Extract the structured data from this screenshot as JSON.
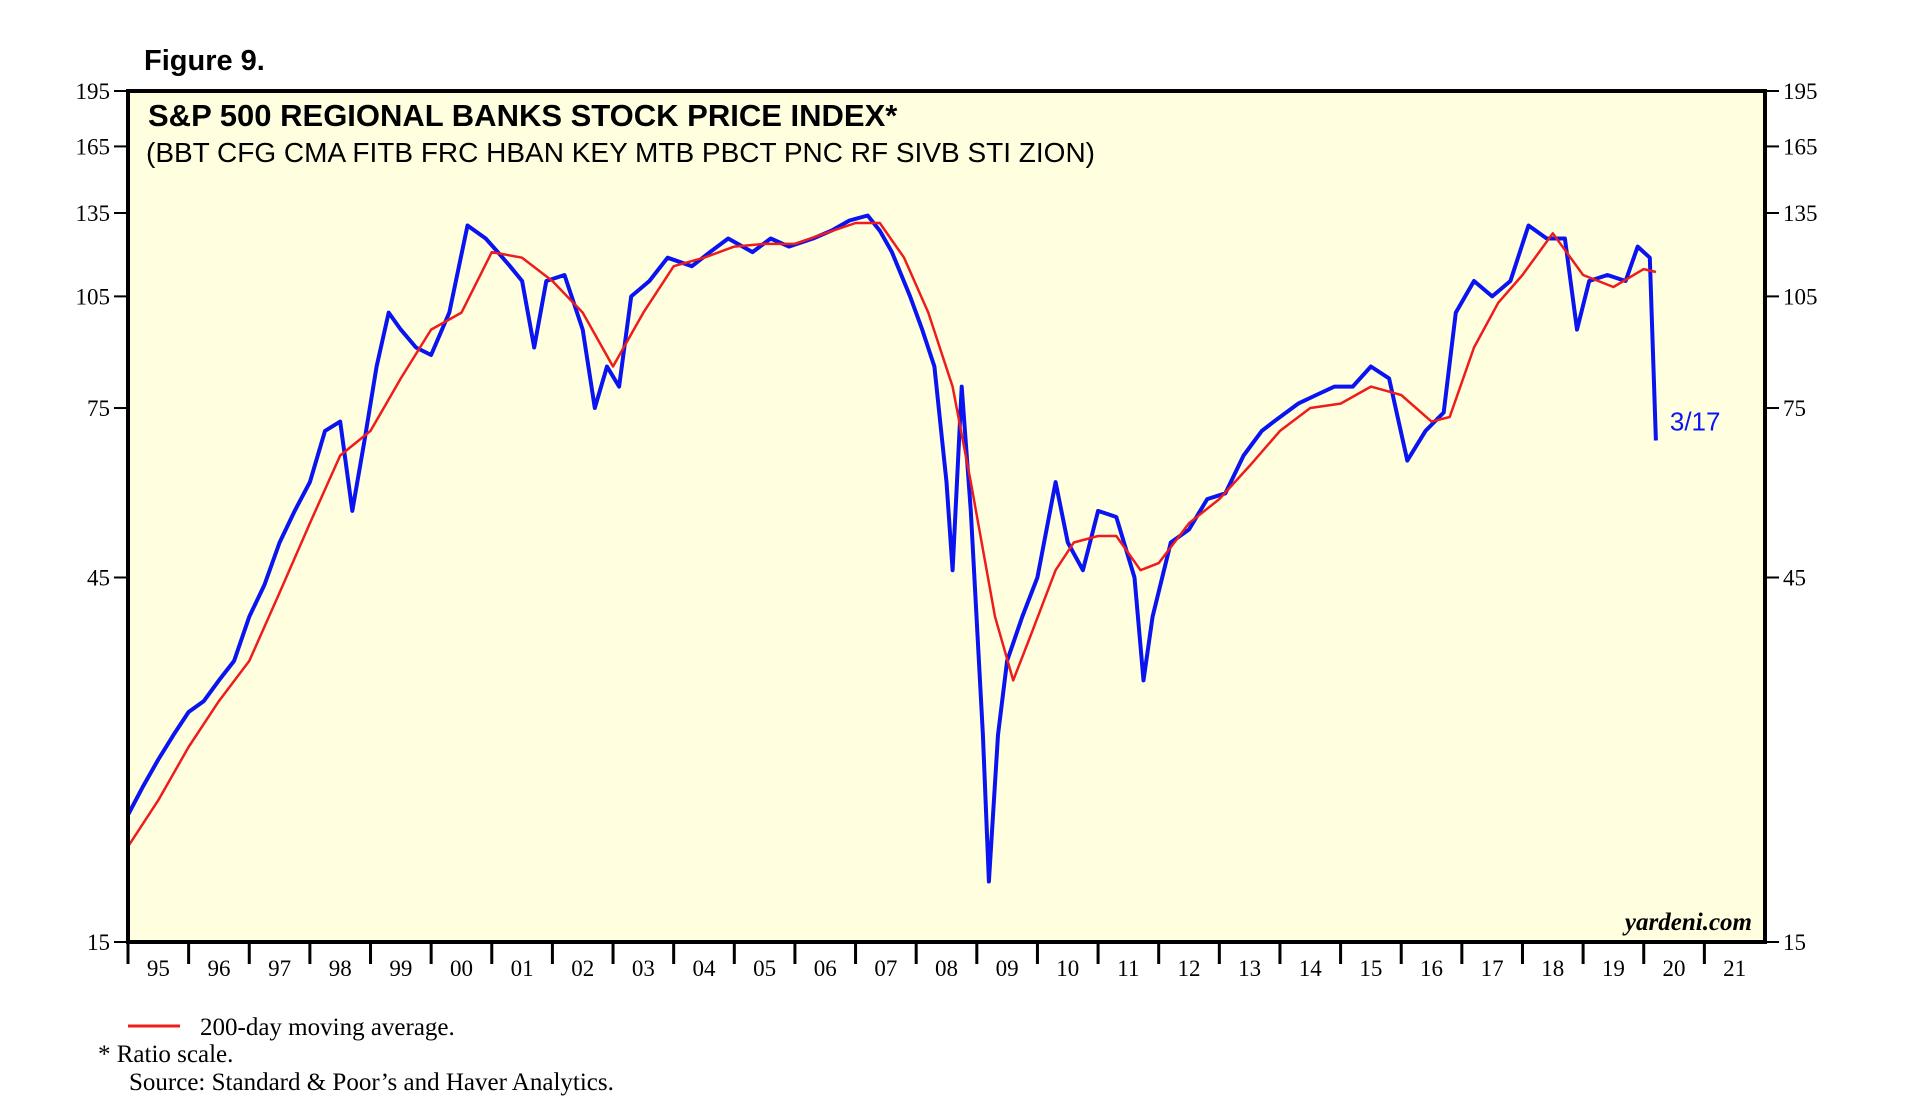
{
  "chart_data": {
    "type": "line",
    "figure_label": "Figure 9.",
    "title": "S&P 500 REGIONAL BANKS STOCK PRICE INDEX*",
    "subtitle": "(BBT CFG CMA FITB FRC HBAN KEY MTB PBCT PNC RF SIVB STI ZION)",
    "watermark": "yardeni.com",
    "annotation": "3/17",
    "footnotes": [
      "*  Ratio scale.",
      "Source: Standard & Poor’s and Haver Analytics."
    ],
    "log_scale": true,
    "xlim": [
      1995,
      2022
    ],
    "xticks": [
      {
        "value": 1995,
        "label": "95"
      },
      {
        "value": 1996,
        "label": "96"
      },
      {
        "value": 1997,
        "label": "97"
      },
      {
        "value": 1998,
        "label": "98"
      },
      {
        "value": 1999,
        "label": "99"
      },
      {
        "value": 2000,
        "label": "00"
      },
      {
        "value": 2001,
        "label": "01"
      },
      {
        "value": 2002,
        "label": "02"
      },
      {
        "value": 2003,
        "label": "03"
      },
      {
        "value": 2004,
        "label": "04"
      },
      {
        "value": 2005,
        "label": "05"
      },
      {
        "value": 2006,
        "label": "06"
      },
      {
        "value": 2007,
        "label": "07"
      },
      {
        "value": 2008,
        "label": "08"
      },
      {
        "value": 2009,
        "label": "09"
      },
      {
        "value": 2010,
        "label": "10"
      },
      {
        "value": 2011,
        "label": "11"
      },
      {
        "value": 2012,
        "label": "12"
      },
      {
        "value": 2013,
        "label": "13"
      },
      {
        "value": 2014,
        "label": "14"
      },
      {
        "value": 2015,
        "label": "15"
      },
      {
        "value": 2016,
        "label": "16"
      },
      {
        "value": 2017,
        "label": "17"
      },
      {
        "value": 2018,
        "label": "18"
      },
      {
        "value": 2019,
        "label": "19"
      },
      {
        "value": 2020,
        "label": "20"
      },
      {
        "value": 2021,
        "label": "21"
      }
    ],
    "ylim": [
      15,
      195
    ],
    "yticks": [
      15,
      45,
      75,
      105,
      135,
      165,
      195
    ],
    "series": [
      {
        "color": "#0a14f0",
        "x": [
          1995.0,
          1995.25,
          1995.5,
          1995.75,
          1996.0,
          1996.25,
          1996.5,
          1996.75,
          1997.0,
          1997.25,
          1997.5,
          1997.75,
          1998.0,
          1998.25,
          1998.5,
          1998.7,
          1998.9,
          1999.1,
          1999.3,
          1999.5,
          1999.75,
          2000.0,
          2000.3,
          2000.6,
          2000.9,
          2001.1,
          2001.3,
          2001.5,
          2001.7,
          2001.9,
          2002.2,
          2002.5,
          2002.7,
          2002.9,
          2003.1,
          2003.3,
          2003.6,
          2003.9,
          2004.3,
          2004.6,
          2004.9,
          2005.3,
          2005.6,
          2005.9,
          2006.3,
          2006.6,
          2006.9,
          2007.2,
          2007.4,
          2007.6,
          2007.9,
          2008.1,
          2008.3,
          2008.5,
          2008.6,
          2008.75,
          2008.9,
          2009.1,
          2009.2,
          2009.35,
          2009.5,
          2009.75,
          2010.0,
          2010.3,
          2010.5,
          2010.75,
          2011.0,
          2011.3,
          2011.6,
          2011.75,
          2011.9,
          2012.2,
          2012.5,
          2012.8,
          2013.1,
          2013.4,
          2013.7,
          2013.9,
          2014.3,
          2014.6,
          2014.9,
          2015.2,
          2015.5,
          2015.8,
          2016.1,
          2016.4,
          2016.7,
          2016.9,
          2017.2,
          2017.5,
          2017.8,
          2018.1,
          2018.4,
          2018.7,
          2018.9,
          2019.1,
          2019.4,
          2019.7,
          2019.9,
          2020.1,
          2020.2
        ],
        "values": [
          22,
          24,
          26,
          28,
          30,
          31,
          33,
          35,
          40,
          44,
          50,
          55,
          60,
          70,
          72,
          55,
          68,
          85,
          100,
          95,
          90,
          88,
          100,
          130,
          125,
          120,
          115,
          110,
          90,
          110,
          112,
          95,
          75,
          85,
          80,
          105,
          110,
          118,
          115,
          120,
          125,
          120,
          125,
          122,
          125,
          128,
          132,
          134,
          128,
          120,
          105,
          95,
          85,
          60,
          46,
          80,
          55,
          28,
          18,
          28,
          35,
          40,
          45,
          60,
          50,
          46,
          55,
          54,
          45,
          33,
          40,
          50,
          52,
          57,
          58,
          65,
          70,
          72,
          76,
          78,
          80,
          80,
          85,
          82,
          64,
          70,
          74,
          100,
          110,
          105,
          110,
          130,
          125,
          125,
          95,
          110,
          112,
          110,
          122,
          118,
          68
        ]
      },
      {
        "name": "200-day moving average.",
        "color": "#ee1c1c",
        "x": [
          1995.0,
          1995.5,
          1996.0,
          1996.5,
          1997.0,
          1997.5,
          1998.0,
          1998.5,
          1999.0,
          1999.5,
          2000.0,
          2000.5,
          2001.0,
          2001.5,
          2002.0,
          2002.5,
          2003.0,
          2003.5,
          2004.0,
          2004.5,
          2005.0,
          2005.5,
          2006.0,
          2006.5,
          2007.0,
          2007.4,
          2007.8,
          2008.2,
          2008.6,
          2008.9,
          2009.3,
          2009.6,
          2009.9,
          2010.3,
          2010.6,
          2011.0,
          2011.3,
          2011.7,
          2012.0,
          2012.5,
          2013.0,
          2013.5,
          2014.0,
          2014.5,
          2015.0,
          2015.5,
          2016.0,
          2016.5,
          2016.8,
          2017.2,
          2017.6,
          2018.0,
          2018.5,
          2019.0,
          2019.5,
          2020.0,
          2020.2
        ],
        "values": [
          20,
          23,
          27,
          31,
          35,
          43,
          53,
          65,
          70,
          82,
          95,
          100,
          120,
          118,
          110,
          100,
          85,
          100,
          115,
          118,
          122,
          123,
          123,
          127,
          131,
          131,
          118,
          100,
          80,
          60,
          40,
          33,
          38,
          46,
          50,
          51,
          51,
          46,
          47,
          53,
          57,
          63,
          70,
          75,
          76,
          80,
          78,
          72,
          73,
          90,
          103,
          112,
          127,
          112,
          108,
          114,
          113
        ]
      }
    ]
  }
}
